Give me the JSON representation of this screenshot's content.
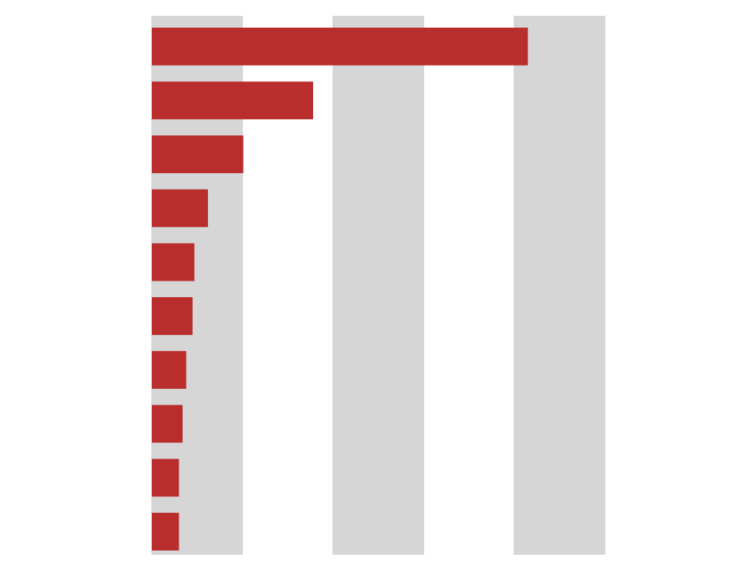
{
  "chart_data": {
    "type": "hbar",
    "categories": [
      null,
      null,
      null,
      null,
      null,
      null,
      null,
      null,
      null,
      null
    ],
    "values": [
      4.15,
      1.78,
      1.01,
      0.62,
      0.47,
      0.45,
      0.38,
      0.34,
      0.3,
      0.3
    ],
    "color": "#b92d2d",
    "xlim": [
      0,
      5
    ],
    "xticks": [
      0,
      1,
      2,
      3,
      4,
      5
    ],
    "grid": true,
    "band_color": "#d6d6d6"
  }
}
